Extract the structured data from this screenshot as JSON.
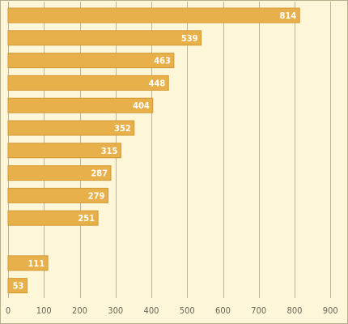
{
  "chart_data": {
    "type": "bar",
    "orientation": "horizontal",
    "values": [
      814,
      539,
      463,
      448,
      404,
      352,
      315,
      287,
      279,
      251,
      null,
      111,
      53
    ],
    "xlim": [
      0,
      940
    ],
    "xticks": [
      0,
      100,
      200,
      300,
      400,
      500,
      600,
      700,
      800,
      900
    ],
    "grid": "vertical",
    "colors": {
      "bar": "#e8b04a",
      "bar_edge": "#d39a35",
      "background": "#fdf6d8",
      "label": "#ffffff",
      "grid": "#bdb49a"
    }
  }
}
